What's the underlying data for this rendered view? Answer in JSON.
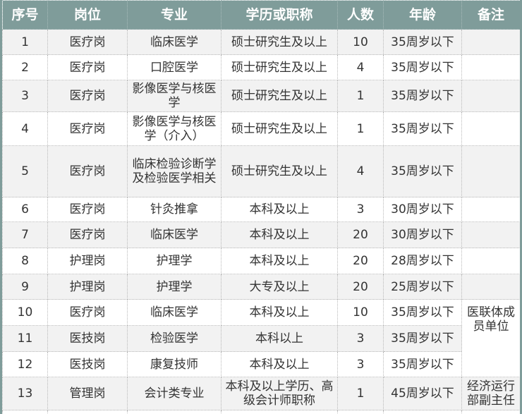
{
  "table": {
    "headers": [
      "序号",
      "岗位",
      "专业",
      "学历或职称",
      "人数",
      "年龄",
      "备注"
    ],
    "rows": [
      {
        "no": "1",
        "post": "医疗岗",
        "major": "临床医学",
        "edu": "硕士研究生及以上",
        "count": "10",
        "age": "35周岁以下",
        "note": ""
      },
      {
        "no": "2",
        "post": "医疗岗",
        "major": "口腔医学",
        "edu": "硕士研究生及以上",
        "count": "4",
        "age": "35周岁以下",
        "note": ""
      },
      {
        "no": "3",
        "post": "医疗岗",
        "major": "影像医学与核医学",
        "edu": "硕士研究生及以上",
        "count": "1",
        "age": "35周岁以下",
        "note": ""
      },
      {
        "no": "4",
        "post": "医疗岗",
        "major": "影像医学与核医学（介入）",
        "edu": "硕士研究生及以上",
        "count": "1",
        "age": "35周岁以下",
        "note": ""
      },
      {
        "no": "5",
        "post": "医疗岗",
        "major": "临床检验诊断学及检验医学相关",
        "edu": "硕士研究生及以上",
        "count": "4",
        "age": "35周岁以下",
        "note": ""
      },
      {
        "no": "6",
        "post": "医疗岗",
        "major": "针灸推拿",
        "edu": "本科及以上",
        "count": "3",
        "age": "30周岁以下",
        "note": ""
      },
      {
        "no": "7",
        "post": "医疗岗",
        "major": "临床医学",
        "edu": "本科及以上",
        "count": "20",
        "age": "30周岁以下",
        "note": ""
      },
      {
        "no": "8",
        "post": "护理岗",
        "major": "护理学",
        "edu": "本科及以上",
        "count": "20",
        "age": "28周岁以下",
        "note": ""
      },
      {
        "no": "9",
        "post": "护理岗",
        "major": "护理学",
        "edu": "大专及以上",
        "count": "20",
        "age": "25周岁以下",
        "note": ""
      },
      {
        "no": "10",
        "post": "医疗岗",
        "major": "临床医学",
        "edu": "本科及以上",
        "count": "10",
        "age": "35周岁以下",
        "note": "医联体成员单位"
      },
      {
        "no": "11",
        "post": "医技岗",
        "major": "检验医学",
        "edu": "本科以上",
        "count": "3",
        "age": "35周岁以下"
      },
      {
        "no": "12",
        "post": "医技岗",
        "major": "康复技师",
        "edu": "本科及以上",
        "count": "3",
        "age": "35周岁以下"
      },
      {
        "no": "13",
        "post": "管理岗",
        "major": "会计类专业",
        "edu": "本科及以上学历、高级会计师职称",
        "count": "1",
        "age": "45周岁以下",
        "note": "经济运行部副主任"
      }
    ]
  },
  "colors": {
    "header_bg": "#7f9c9a",
    "header_text": "#ffffff",
    "stripe": "#f2f2f2"
  }
}
